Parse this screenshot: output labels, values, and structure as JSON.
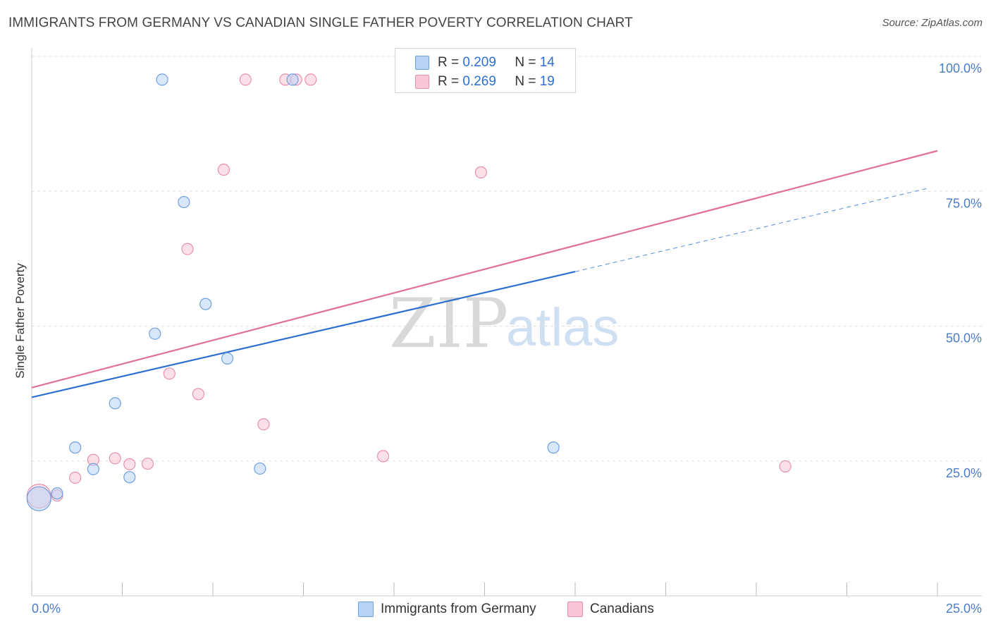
{
  "header": {
    "title": "IMMIGRANTS FROM GERMANY VS CANADIAN SINGLE FATHER POVERTY CORRELATION CHART",
    "source": "Source: ZipAtlas.com"
  },
  "watermark": {
    "zip": "ZIP",
    "atlas": "atlas"
  },
  "legend": {
    "rows": [
      {
        "r_label": "R =",
        "r_value": "0.209",
        "n_label": "N =",
        "n_value": "14"
      },
      {
        "r_label": "R =",
        "r_value": "0.269",
        "n_label": "N =",
        "n_value": "19"
      }
    ]
  },
  "bottom_legend": {
    "germany": "Immigrants from Germany",
    "canadians": "Canadians"
  },
  "colors": {
    "germany_fill": "#b9d3f5",
    "germany_stroke": "#6e9fe0",
    "germany_line": "#2d6fd0",
    "canada_fill": "#f8c6d6",
    "canada_stroke": "#e890ad",
    "canada_line": "#e0709a",
    "tick_label": "#4a7cc9",
    "grid": "#dddddd"
  },
  "chart_data": {
    "type": "scatter",
    "title": "IMMIGRANTS FROM GERMANY VS CANADIAN SINGLE FATHER POVERTY CORRELATION CHART",
    "xlabel": "",
    "ylabel": "Single Father Poverty",
    "xlim": [
      0,
      25
    ],
    "ylim": [
      0,
      100
    ],
    "x_tick_labels": [
      "0.0%",
      "25.0%"
    ],
    "y_ticks": [
      25,
      50,
      75,
      100
    ],
    "y_tick_labels": [
      "25.0%",
      "50.0%",
      "75.0%",
      "100.0%"
    ],
    "grid": true,
    "legend_position": "top-center",
    "series": [
      {
        "name": "Immigrants from Germany",
        "r": 0.209,
        "n": 14,
        "points": [
          {
            "x": 0.2,
            "y": 18.0,
            "big": true
          },
          {
            "x": 0.7,
            "y": 19.0
          },
          {
            "x": 1.2,
            "y": 27.5
          },
          {
            "x": 1.7,
            "y": 23.5
          },
          {
            "x": 2.3,
            "y": 35.7
          },
          {
            "x": 2.7,
            "y": 22.0
          },
          {
            "x": 3.4,
            "y": 48.6
          },
          {
            "x": 3.6,
            "y": 95.7
          },
          {
            "x": 4.2,
            "y": 73.0
          },
          {
            "x": 4.8,
            "y": 54.1
          },
          {
            "x": 5.4,
            "y": 44.0
          },
          {
            "x": 6.3,
            "y": 23.6
          },
          {
            "x": 7.2,
            "y": 95.7
          },
          {
            "x": 14.4,
            "y": 27.5
          }
        ],
        "trend": {
          "x0": 0,
          "y0": 36.8,
          "x1": 15.0,
          "y1": 60.1,
          "dash_x1": 24.7,
          "dash_y1": 75.5
        }
      },
      {
        "name": "Canadians",
        "r": 0.269,
        "n": 19,
        "points": [
          {
            "x": 0.2,
            "y": 18.5,
            "big": true
          },
          {
            "x": 0.7,
            "y": 18.6
          },
          {
            "x": 1.2,
            "y": 21.9
          },
          {
            "x": 1.7,
            "y": 25.2
          },
          {
            "x": 2.3,
            "y": 25.5
          },
          {
            "x": 2.7,
            "y": 24.4
          },
          {
            "x": 3.2,
            "y": 24.5
          },
          {
            "x": 3.8,
            "y": 41.2
          },
          {
            "x": 4.3,
            "y": 64.3
          },
          {
            "x": 4.6,
            "y": 37.4
          },
          {
            "x": 5.3,
            "y": 79.0
          },
          {
            "x": 5.9,
            "y": 95.7
          },
          {
            "x": 6.4,
            "y": 31.8
          },
          {
            "x": 7.0,
            "y": 95.7
          },
          {
            "x": 7.3,
            "y": 95.7
          },
          {
            "x": 7.7,
            "y": 95.7
          },
          {
            "x": 9.7,
            "y": 25.9
          },
          {
            "x": 12.4,
            "y": 78.5
          },
          {
            "x": 20.8,
            "y": 24.0
          }
        ],
        "trend": {
          "x0": 0,
          "y0": 38.6,
          "x1": 25.0,
          "y1": 82.5
        }
      }
    ]
  }
}
